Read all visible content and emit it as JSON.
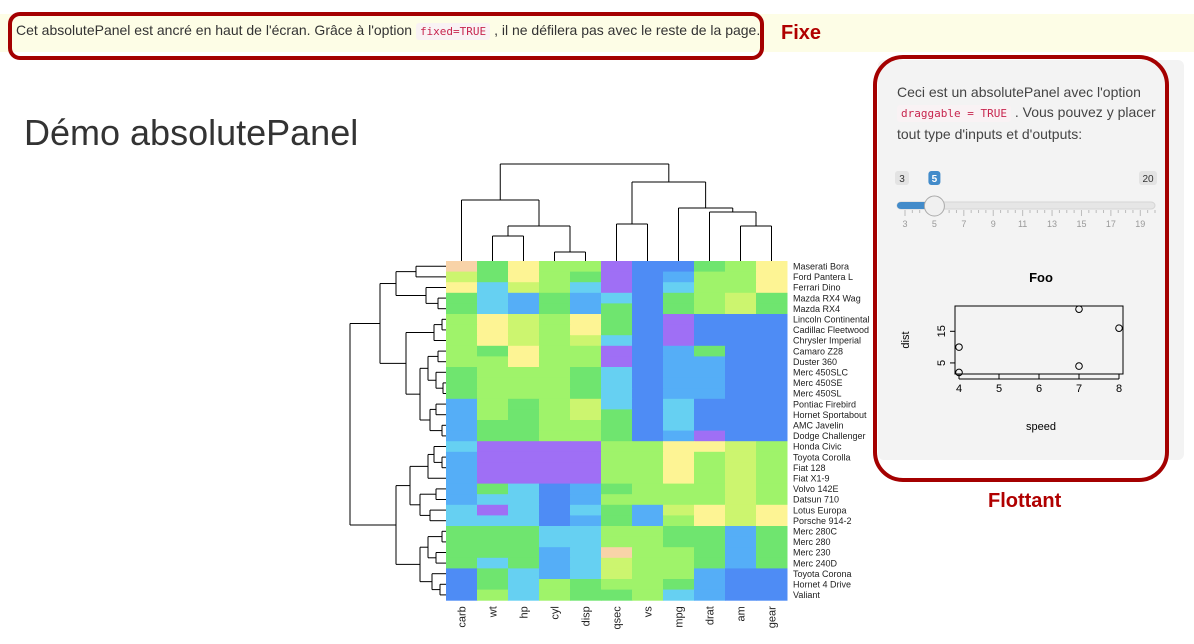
{
  "fixed_panel": {
    "text_before": "Cet absolutePanel est ancré en haut de l'écran. Grâce à l'option",
    "code": "fixed=TRUE",
    "text_after": ", il ne défilera pas avec le reste de la page.",
    "annotation": "Fixe"
  },
  "page": {
    "title": "Démo absolutePanel"
  },
  "heatmap": {
    "columns": [
      "carb",
      "wt",
      "hp",
      "cyl",
      "disp",
      "qsec",
      "vs",
      "mpg",
      "drat",
      "am",
      "gear"
    ],
    "rows": [
      "Maserati Bora",
      "Ford Pantera L",
      "Ferrari Dino",
      "Mazda RX4 Wag",
      "Mazda RX4",
      "Lincoln Continental",
      "Cadillac Fleetwood",
      "Chrysler Imperial",
      "Camaro Z28",
      "Duster 360",
      "Merc 450SLC",
      "Merc 450SE",
      "Merc 450SL",
      "Pontiac Firebird",
      "Hornet Sportabout",
      "AMC Javelin",
      "Dodge Challenger",
      "Honda Civic",
      "Toyota Corolla",
      "Fiat 128",
      "Fiat X1-9",
      "Volvo 142E",
      "Datsun 710",
      "Lotus Europa",
      "Porsche 914-2",
      "Merc 280C",
      "Merc 280",
      "Merc 230",
      "Merc 240D",
      "Toyota Corona",
      "Hornet 4 Drive",
      "Valiant"
    ],
    "palette": [
      "#4e8cf5",
      "#55aef7",
      "#66d0f2",
      "#6fe56f",
      "#9ff36a",
      "#ccf56f",
      "#fdf494",
      "#f8d3a8",
      "#9f6ff5"
    ],
    "cells": [
      [
        7,
        3,
        6,
        4,
        4,
        8,
        0,
        0,
        3,
        4,
        6
      ],
      [
        5,
        3,
        6,
        4,
        3,
        8,
        0,
        1,
        4,
        4,
        6
      ],
      [
        6,
        2,
        5,
        4,
        2,
        8,
        0,
        2,
        4,
        4,
        6
      ],
      [
        3,
        2,
        1,
        3,
        1,
        2,
        0,
        3,
        4,
        5,
        3
      ],
      [
        3,
        2,
        1,
        3,
        1,
        3,
        0,
        3,
        4,
        5,
        3
      ],
      [
        4,
        6,
        5,
        4,
        6,
        3,
        0,
        8,
        0,
        0,
        0
      ],
      [
        4,
        6,
        5,
        4,
        6,
        3,
        0,
        8,
        0,
        0,
        0
      ],
      [
        4,
        6,
        5,
        4,
        5,
        2,
        0,
        8,
        0,
        0,
        0
      ],
      [
        4,
        3,
        6,
        4,
        4,
        8,
        0,
        1,
        3,
        0,
        0
      ],
      [
        4,
        4,
        6,
        4,
        4,
        8,
        0,
        1,
        1,
        0,
        0
      ],
      [
        3,
        4,
        4,
        4,
        3,
        2,
        0,
        1,
        1,
        0,
        0
      ],
      [
        3,
        4,
        4,
        4,
        3,
        2,
        0,
        1,
        1,
        0,
        0
      ],
      [
        3,
        4,
        4,
        4,
        3,
        2,
        0,
        1,
        1,
        0,
        0
      ],
      [
        1,
        4,
        3,
        4,
        5,
        2,
        0,
        2,
        0,
        0,
        0
      ],
      [
        1,
        4,
        3,
        4,
        5,
        3,
        0,
        2,
        0,
        0,
        0
      ],
      [
        1,
        3,
        3,
        4,
        4,
        3,
        0,
        2,
        0,
        0,
        0
      ],
      [
        1,
        3,
        3,
        4,
        4,
        3,
        0,
        1,
        8,
        0,
        0
      ],
      [
        2,
        8,
        8,
        8,
        8,
        4,
        4,
        6,
        6,
        5,
        4
      ],
      [
        1,
        8,
        8,
        8,
        8,
        4,
        4,
        6,
        4,
        5,
        4
      ],
      [
        1,
        8,
        8,
        8,
        8,
        4,
        4,
        6,
        4,
        5,
        4
      ],
      [
        1,
        8,
        8,
        8,
        8,
        4,
        4,
        6,
        4,
        5,
        4
      ],
      [
        1,
        3,
        2,
        0,
        1,
        3,
        4,
        4,
        4,
        5,
        4
      ],
      [
        1,
        2,
        2,
        0,
        1,
        4,
        4,
        4,
        4,
        5,
        4
      ],
      [
        2,
        8,
        2,
        0,
        2,
        3,
        1,
        5,
        6,
        5,
        6
      ],
      [
        2,
        2,
        2,
        0,
        1,
        3,
        1,
        4,
        6,
        5,
        6
      ],
      [
        3,
        3,
        3,
        2,
        2,
        4,
        4,
        3,
        3,
        1,
        3
      ],
      [
        3,
        3,
        3,
        2,
        2,
        4,
        4,
        3,
        3,
        1,
        3
      ],
      [
        3,
        3,
        3,
        1,
        2,
        7,
        4,
        4,
        3,
        1,
        3
      ],
      [
        3,
        2,
        3,
        1,
        2,
        5,
        4,
        4,
        3,
        1,
        3
      ],
      [
        0,
        3,
        2,
        1,
        2,
        5,
        4,
        4,
        1,
        0,
        0
      ],
      [
        0,
        3,
        2,
        4,
        3,
        4,
        4,
        3,
        1,
        0,
        0
      ],
      [
        0,
        4,
        2,
        4,
        3,
        3,
        4,
        2,
        1,
        0,
        0
      ]
    ]
  },
  "floating_panel": {
    "text_before": "Ceci est un absolutePanel avec l'option",
    "code": "draggable = TRUE",
    "text_after": ". Vous pouvez y placer tout type d'inputs et d'outputs:",
    "annotation": "Flottant",
    "slider": {
      "min": 3,
      "max": 20,
      "value": 5,
      "min_label": "3",
      "max_label": "20",
      "value_label": "5",
      "ticks": [
        "3",
        "5",
        "7",
        "9",
        "11",
        "13",
        "15",
        "17",
        "19"
      ],
      "accent": "#428bca"
    }
  },
  "chart_data": {
    "type": "scatter",
    "title": "Foo",
    "xlabel": "speed",
    "ylabel": "dist",
    "xlim": [
      3.9,
      8.1
    ],
    "ylim": [
      1.5,
      23
    ],
    "xticks": [
      4,
      5,
      6,
      7,
      8
    ],
    "yticks": [
      5,
      15
    ],
    "x": [
      4,
      4,
      7,
      7,
      8
    ],
    "y": [
      2,
      10,
      4,
      22,
      16
    ]
  }
}
